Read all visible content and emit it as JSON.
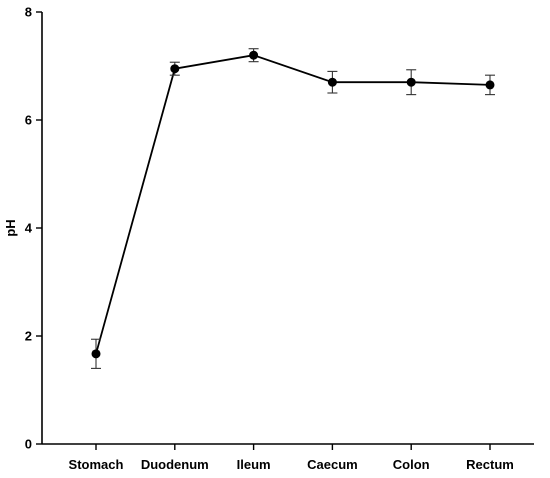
{
  "chart_data": {
    "type": "line",
    "title": "",
    "xlabel": "",
    "ylabel": "pH",
    "ylim": [
      0,
      8
    ],
    "yticks": [
      0,
      2,
      4,
      6,
      8
    ],
    "grid": false,
    "legend": "none",
    "categories": [
      "Stomach",
      "Duodenum",
      "Ileum",
      "Caecum",
      "Colon",
      "Rectum"
    ],
    "series": [
      {
        "values": [
          1.67,
          6.95,
          7.2,
          6.7,
          6.7,
          6.65
        ],
        "error": [
          0.27,
          0.12,
          0.12,
          0.2,
          0.23,
          0.18
        ],
        "color": "#000000"
      }
    ]
  }
}
